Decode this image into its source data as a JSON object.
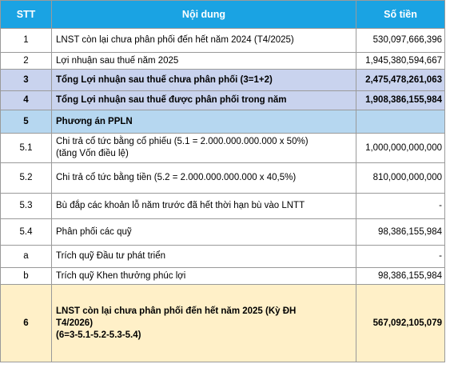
{
  "header": {
    "stt": "STT",
    "content": "Nội dung",
    "amount": "Số tiền"
  },
  "rows": [
    {
      "stt": "1",
      "content": "LNST còn lại chưa phân phối đến hết năm 2024 (T4/2025)",
      "amount": "530,097,666,396"
    },
    {
      "stt": "2",
      "content": "Lợi nhuận sau thuế năm 2025",
      "amount": "1,945,380,594,667"
    },
    {
      "stt": "3",
      "content": "Tổng Lợi nhuận sau thuế chưa phân phối (3=1+2)",
      "amount": "2,475,478,261,063"
    },
    {
      "stt": "4",
      "content": "Tổng Lợi nhuận sau thuế được phân phối trong năm",
      "amount": "1,908,386,155,984"
    },
    {
      "stt": "5",
      "content": "Phương án PPLN",
      "amount": ""
    },
    {
      "stt": "5.1",
      "content": "Chi trả cổ tức bằng cổ phiếu (5.1 = 2.000.000.000.000 x 50%)",
      "content_line2": "(tăng Vốn điều lệ)",
      "amount": "1,000,000,000,000"
    },
    {
      "stt": "5.2",
      "content": "Chi trả cổ tức bằng tiền (5.2 = 2.000.000.000.000 x 40,5%)",
      "amount": "810,000,000,000"
    },
    {
      "stt": "5.3",
      "content": "Bù đắp các khoản lỗ năm trước đã hết thời hạn bù vào LNTT",
      "amount": "-"
    },
    {
      "stt": "5.4",
      "content": "Phân phối các quỹ",
      "amount": "98,386,155,984"
    },
    {
      "stt": "a",
      "content": "Trích quỹ Đầu tư phát triển",
      "amount": "-"
    },
    {
      "stt": "b",
      "content": "Trích quỹ Khen thưởng phúc lợi",
      "amount": "98,386,155,984"
    },
    {
      "stt": "6",
      "content": "LNST còn lại chưa phân phối đến hết năm 2025 (Kỳ ĐH",
      "content_line2": "T4/2026)",
      "content_line3": "(6=3-5.1-5.2-5.3-5.4)",
      "amount": "567,092,105,079"
    }
  ]
}
